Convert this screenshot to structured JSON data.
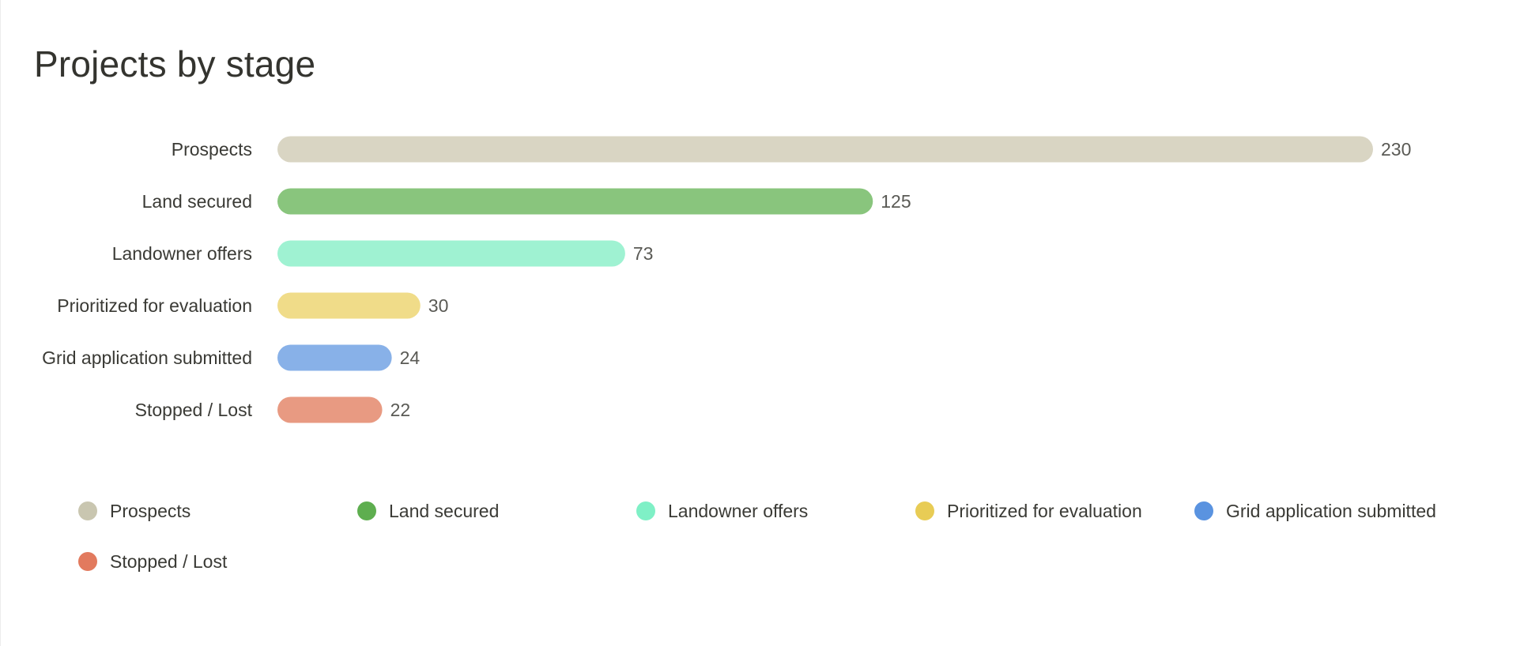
{
  "chart_data": {
    "type": "bar",
    "orientation": "horizontal",
    "title": "Projects by stage",
    "categories": [
      "Prospects",
      "Land secured",
      "Landowner offers",
      "Prioritized for evaluation",
      "Grid application submitted",
      "Stopped / Lost"
    ],
    "values": [
      230,
      125,
      73,
      30,
      24,
      22
    ],
    "bar_colors": [
      "#d9d5c3",
      "#89c57d",
      "#9ff2d2",
      "#f0dc89",
      "#88b1e8",
      "#e89a82"
    ],
    "xlim": [
      0,
      230
    ],
    "grid": false,
    "legend": {
      "placement": "bottom",
      "items": [
        {
          "label": "Prospects",
          "color": "#c9c6b0"
        },
        {
          "label": "Land secured",
          "color": "#5eae4f"
        },
        {
          "label": "Landowner offers",
          "color": "#7ff0c6"
        },
        {
          "label": "Prioritized for evaluation",
          "color": "#e8cc55"
        },
        {
          "label": "Grid application submitted",
          "color": "#5a93e0"
        },
        {
          "label": "Stopped / Lost",
          "color": "#e27a5e"
        }
      ]
    }
  }
}
